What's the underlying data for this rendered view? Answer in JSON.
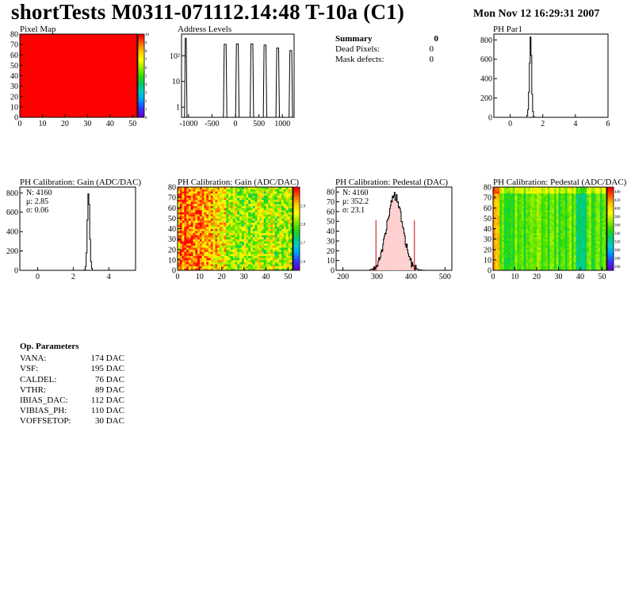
{
  "header": {
    "title": "shortTests M0311-071112.14:48 T-10a (C1)",
    "date": "Mon Nov 12 16:29:31 2007"
  },
  "summary": {
    "title": "Summary",
    "total": "0",
    "rows": [
      {
        "label": "Dead Pixels:",
        "value": "0"
      },
      {
        "label": "Mask defects:",
        "value": "0"
      }
    ]
  },
  "params": {
    "title": "Op. Parameters",
    "rows": [
      {
        "name": "VANA:",
        "value": "174 DAC"
      },
      {
        "name": "VSF:",
        "value": "195 DAC"
      },
      {
        "name": "CALDEL:",
        "value": "76 DAC"
      },
      {
        "name": "VTHR:",
        "value": "89 DAC"
      },
      {
        "name": "IBIAS_DAC:",
        "value": "112 DAC"
      },
      {
        "name": "VIBIAS_PH:",
        "value": "110 DAC"
      },
      {
        "name": "VOFFSETOP:",
        "value": "30 DAC"
      }
    ]
  },
  "colors": {
    "frame": "#000000",
    "hist_line": "#000000",
    "stat_highlight": "#cc0000",
    "pixel_map_fill": "#ff0000",
    "palette": [
      "#6600cc",
      "#3333ff",
      "#0099ff",
      "#00cccc",
      "#00cc66",
      "#33dd00",
      "#99ee00",
      "#ffff00",
      "#ffcc00",
      "#ff6600",
      "#ff0000"
    ]
  },
  "chart_data": [
    {
      "id": "pixel_map",
      "type": "heatmap",
      "title": "Pixel Map",
      "xlim": [
        0,
        52
      ],
      "ylim": [
        0,
        80
      ],
      "x_ticks": [
        0,
        10,
        20,
        30,
        40,
        50
      ],
      "y_ticks": [
        0,
        10,
        20,
        30,
        40,
        50,
        60,
        70,
        80
      ],
      "z_ticks": [
        0,
        1,
        2,
        3,
        4,
        5,
        6,
        7,
        8,
        9,
        10
      ],
      "zlim": [
        0,
        10
      ],
      "uniform_value": 10
    },
    {
      "id": "address_levels",
      "type": "bar",
      "title": "Address Levels",
      "log_y": true,
      "xlim": [
        -1150,
        1250
      ],
      "ylim": [
        0.4,
        700
      ],
      "x_ticks": [
        -1000,
        -500,
        0,
        500,
        1000
      ],
      "y_ticks": [
        {
          "value": 1,
          "label": "1"
        },
        {
          "value": 10,
          "label": "10"
        },
        {
          "value": 100,
          "label": "10²"
        }
      ],
      "peaks": [
        {
          "center": -1060,
          "width": 20,
          "height": 480
        },
        {
          "center": -220,
          "width": 40,
          "height": 280
        },
        {
          "center": 40,
          "width": 40,
          "height": 290
        },
        {
          "center": 350,
          "width": 40,
          "height": 290
        },
        {
          "center": 630,
          "width": 40,
          "height": 260
        },
        {
          "center": 900,
          "width": 40,
          "height": 200
        },
        {
          "center": 1180,
          "width": 40,
          "height": 160
        }
      ]
    },
    {
      "id": "ph_par1",
      "type": "bar",
      "title": "PH Par1",
      "xlim": [
        -1,
        6
      ],
      "ylim": [
        0,
        860
      ],
      "x_ticks": [
        0,
        2,
        4,
        6
      ],
      "y_ticks": [
        0,
        200,
        400,
        600,
        800
      ],
      "bins": [
        {
          "x": 1.05,
          "y": 20
        },
        {
          "x": 1.1,
          "y": 80
        },
        {
          "x": 1.15,
          "y": 260
        },
        {
          "x": 1.2,
          "y": 560
        },
        {
          "x": 1.25,
          "y": 830
        },
        {
          "x": 1.3,
          "y": 640
        },
        {
          "x": 1.35,
          "y": 240
        },
        {
          "x": 1.4,
          "y": 60
        },
        {
          "x": 1.45,
          "y": 10
        }
      ],
      "bin_width": 0.05
    },
    {
      "id": "gain_hist",
      "type": "bar",
      "title": "PH Calibration: Gain (ADC/DAC)",
      "xlim": [
        -1,
        5.5
      ],
      "ylim": [
        0,
        860
      ],
      "x_ticks": [
        0,
        2,
        4
      ],
      "y_ticks": [
        0,
        200,
        400,
        600,
        800
      ],
      "stats": {
        "N": "N: 4160",
        "mean": "μ: 2.85",
        "sigma": "σ: 0.06"
      },
      "bins": [
        {
          "x": 2.65,
          "y": 5
        },
        {
          "x": 2.7,
          "y": 40
        },
        {
          "x": 2.75,
          "y": 180
        },
        {
          "x": 2.8,
          "y": 520
        },
        {
          "x": 2.85,
          "y": 790
        },
        {
          "x": 2.9,
          "y": 680
        },
        {
          "x": 2.95,
          "y": 320
        },
        {
          "x": 3.0,
          "y": 90
        },
        {
          "x": 3.05,
          "y": 20
        }
      ],
      "bin_width": 0.05
    },
    {
      "id": "gain_map",
      "type": "heatmap",
      "title": "PH Calibration: Gain (ADC/DAC)",
      "xlim": [
        0,
        52
      ],
      "ylim": [
        0,
        80
      ],
      "x_ticks": [
        0,
        10,
        20,
        30,
        40,
        50
      ],
      "y_ticks": [
        0,
        10,
        20,
        30,
        40,
        50,
        60,
        70,
        80
      ],
      "z_ticks": [
        2.6,
        2.7,
        2.8,
        2.9
      ],
      "zlim": [
        2.55,
        3.0
      ]
    },
    {
      "id": "pedestal_hist",
      "type": "bar",
      "title": "PH Calibration: Pedestal (DAC)",
      "xlim": [
        180,
        520
      ],
      "ylim": [
        0,
        85
      ],
      "x_ticks": [
        200,
        300,
        400,
        500
      ],
      "y_ticks": [
        0,
        10,
        20,
        30,
        40,
        50,
        60,
        70,
        80
      ],
      "stats": {
        "N": "N: 4160",
        "mean": "μ: 352.2",
        "sigma": "σ: 23.1"
      },
      "mean": 352.2,
      "sigma": 23.1,
      "cut_lines": [
        297,
        410
      ],
      "cut_height": 51
    },
    {
      "id": "pedestal_map",
      "type": "heatmap",
      "title": "PH Calibration: Pedestal (ADC/DAC)",
      "xlim": [
        0,
        52
      ],
      "ylim": [
        0,
        80
      ],
      "x_ticks": [
        0,
        10,
        20,
        30,
        40,
        50
      ],
      "y_ticks": [
        0,
        10,
        20,
        30,
        40,
        50,
        60,
        70,
        80
      ],
      "z_ticks": [
        260,
        280,
        300,
        320,
        340,
        360,
        380,
        400,
        420,
        440
      ],
      "zlim": [
        250,
        450
      ]
    }
  ]
}
